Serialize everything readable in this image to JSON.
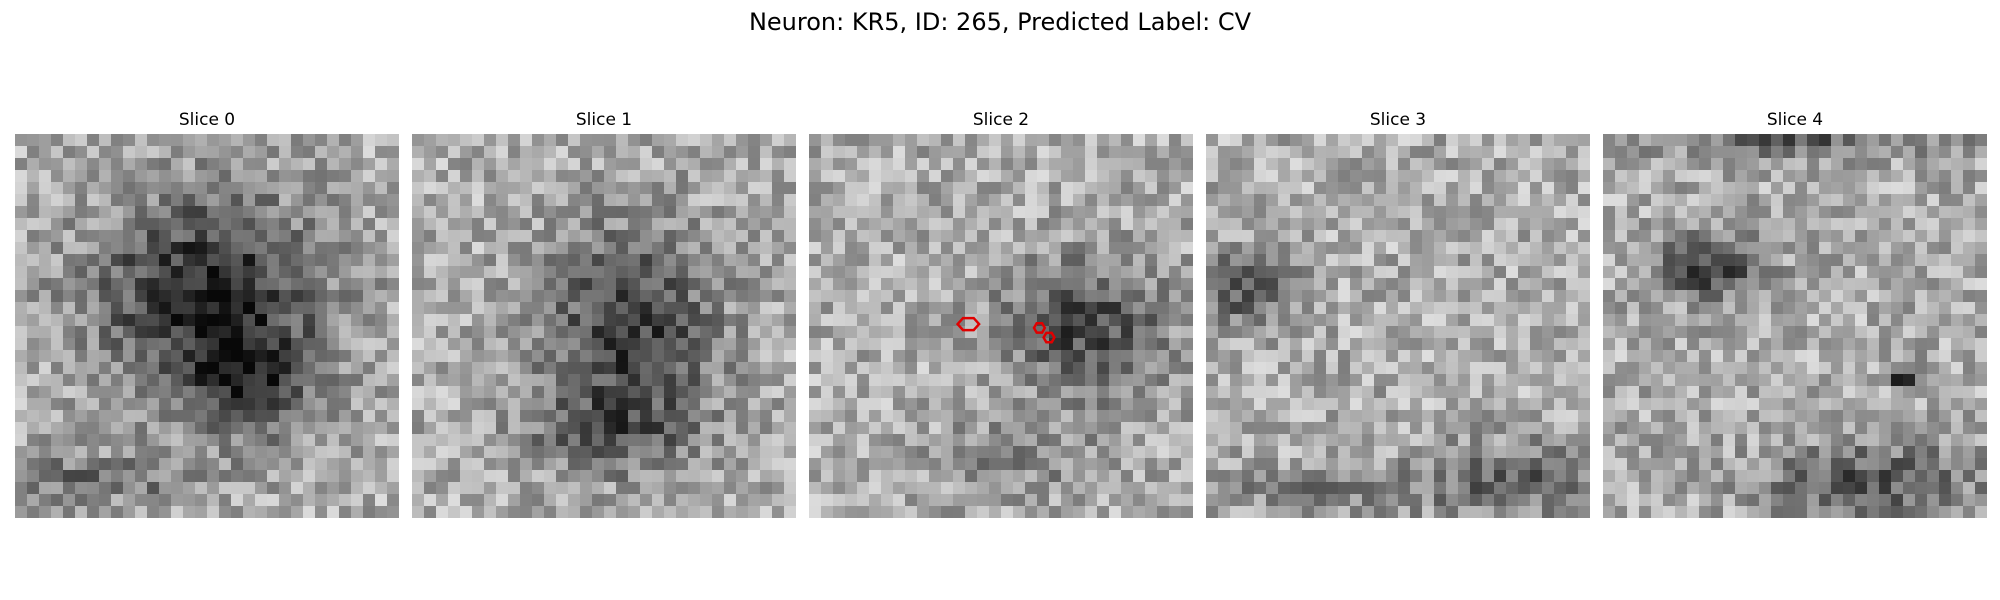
{
  "figure": {
    "title": "Neuron: KR5, ID: 265, Predicted Label: CV"
  },
  "slices": [
    {
      "title": "Slice 0",
      "seed": 11,
      "blobs": [
        [
          0.5,
          0.42,
          0.36,
          0.32,
          0.55
        ],
        [
          0.62,
          0.65,
          0.22,
          0.18,
          0.35
        ],
        [
          0.2,
          0.9,
          0.35,
          0.08,
          0.25
        ]
      ]
    },
    {
      "title": "Slice 1",
      "seed": 23,
      "blobs": [
        [
          0.57,
          0.52,
          0.28,
          0.34,
          0.45
        ],
        [
          0.5,
          0.78,
          0.25,
          0.12,
          0.25
        ]
      ]
    },
    {
      "title": "Slice 2",
      "seed": 37,
      "blobs": [
        [
          0.72,
          0.5,
          0.26,
          0.22,
          0.4
        ],
        [
          0.55,
          0.85,
          0.3,
          0.12,
          0.15
        ]
      ],
      "contour_color": "#e00000",
      "contours": [
        [
          0.415,
          0.495,
          0.028,
          0.018
        ],
        [
          0.6,
          0.505,
          0.014,
          0.014
        ],
        [
          0.625,
          0.53,
          0.014,
          0.014
        ]
      ]
    },
    {
      "title": "Slice 3",
      "seed": 41,
      "blobs": [
        [
          0.1,
          0.4,
          0.15,
          0.12,
          0.35
        ],
        [
          0.8,
          0.9,
          0.3,
          0.12,
          0.3
        ],
        [
          0.3,
          0.93,
          0.3,
          0.08,
          0.2
        ]
      ]
    },
    {
      "title": "Slice 4",
      "seed": 59,
      "blobs": [
        [
          0.28,
          0.35,
          0.18,
          0.1,
          0.45
        ],
        [
          0.7,
          0.9,
          0.35,
          0.12,
          0.35
        ],
        [
          0.5,
          0.02,
          0.5,
          0.05,
          0.3
        ],
        [
          0.78,
          0.63,
          0.05,
          0.04,
          0.5
        ]
      ]
    }
  ]
}
